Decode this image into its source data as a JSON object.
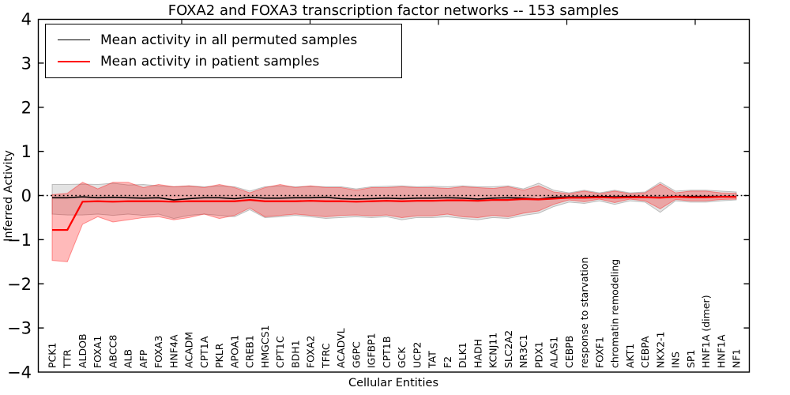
{
  "chart": {
    "title": "FOXA2 and FOXA3 transcription factor networks -- 153 samples",
    "xlabel": "Cellular Entities",
    "ylabel": "Inferred Activity"
  },
  "legend": {
    "items": [
      {
        "label": "Mean activity in all permuted samples",
        "color": "#000000"
      },
      {
        "label": "Mean activity in patient samples",
        "color": "#ff0000"
      }
    ]
  },
  "chart_data": {
    "type": "line",
    "title": "FOXA2 and FOXA3 transcription factor networks -- 153 samples",
    "xlabel": "Cellular Entities",
    "ylabel": "Inferred Activity",
    "ylim": [
      -4,
      4
    ],
    "ytick_labels": [
      "−4",
      "−3",
      "−2",
      "−1",
      "0",
      "1",
      "2",
      "3",
      "4"
    ],
    "yticks": [
      -4,
      -3,
      -2,
      -1,
      0,
      1,
      2,
      3,
      4
    ],
    "grid": false,
    "legend_position": "upper left",
    "zero_line": {
      "y": 0,
      "style": "dotted",
      "color": "#000000"
    },
    "categories": [
      "PCK1",
      "TTR",
      "ALDOB",
      "FOXA1",
      "ABCC8",
      "ALB",
      "AFP",
      "FOXA3",
      "HNF4A",
      "ACADM",
      "CPT1A",
      "PKLR",
      "APOA1",
      "CREB1",
      "HMGCS1",
      "CPT1C",
      "BDH1",
      "FOXA2",
      "TFRC",
      "ACADVL",
      "G6PC",
      "IGFBP1",
      "CPT1B",
      "GCK",
      "UCP2",
      "TAT",
      "F2",
      "DLK1",
      "HADH",
      "KCNJ11",
      "SLC2A2",
      "NR3C1",
      "PDX1",
      "ALAS1",
      "CEBPB",
      "response to starvation",
      "FOXF1",
      "chromatin remodeling",
      "AKT1",
      "CEBPA",
      "NKX2-1",
      "INS",
      "SP1",
      "HNF1A (dimer)",
      "HNF1A",
      "NF1"
    ],
    "series": [
      {
        "name": "Mean activity in all permuted samples",
        "color": "#000000",
        "values": [
          -0.05,
          -0.05,
          -0.03,
          -0.05,
          -0.04,
          -0.05,
          -0.06,
          -0.05,
          -0.1,
          -0.07,
          -0.05,
          -0.05,
          -0.07,
          -0.04,
          -0.06,
          -0.06,
          -0.05,
          -0.05,
          -0.04,
          -0.07,
          -0.08,
          -0.07,
          -0.06,
          -0.07,
          -0.06,
          -0.06,
          -0.05,
          -0.06,
          -0.08,
          -0.06,
          -0.05,
          -0.06,
          -0.08,
          -0.04,
          -0.03,
          -0.03,
          -0.02,
          -0.03,
          -0.02,
          -0.03,
          -0.04,
          -0.02,
          -0.02,
          -0.02,
          -0.02,
          -0.02
        ]
      },
      {
        "name": "Mean activity in patient samples",
        "color": "#ff0000",
        "values": [
          -0.78,
          -0.78,
          -0.14,
          -0.13,
          -0.14,
          -0.13,
          -0.13,
          -0.13,
          -0.14,
          -0.13,
          -0.13,
          -0.13,
          -0.13,
          -0.1,
          -0.13,
          -0.13,
          -0.13,
          -0.12,
          -0.13,
          -0.13,
          -0.14,
          -0.13,
          -0.12,
          -0.13,
          -0.12,
          -0.12,
          -0.11,
          -0.11,
          -0.12,
          -0.1,
          -0.1,
          -0.08,
          -0.09,
          -0.07,
          -0.05,
          -0.05,
          -0.04,
          -0.05,
          -0.04,
          -0.04,
          -0.05,
          -0.03,
          -0.04,
          -0.04,
          -0.03,
          -0.03
        ]
      }
    ],
    "bands": [
      {
        "name": "permuted-std-band",
        "fill": "rgba(0,0,0,0.11)",
        "edge": "rgba(0,0,0,0.22)",
        "upper": [
          0.25,
          0.25,
          0.26,
          0.25,
          0.28,
          0.24,
          0.25,
          0.22,
          0.2,
          0.22,
          0.2,
          0.22,
          0.2,
          0.1,
          0.2,
          0.22,
          0.2,
          0.21,
          0.2,
          0.2,
          0.15,
          0.2,
          0.21,
          0.22,
          0.2,
          0.21,
          0.2,
          0.22,
          0.2,
          0.2,
          0.22,
          0.15,
          0.28,
          0.12,
          0.06,
          0.12,
          0.06,
          0.12,
          0.06,
          0.08,
          0.3,
          0.1,
          0.12,
          0.12,
          0.1,
          0.08
        ],
        "lower": [
          -0.42,
          -0.44,
          -0.44,
          -0.42,
          -0.45,
          -0.42,
          -0.45,
          -0.42,
          -0.52,
          -0.45,
          -0.42,
          -0.45,
          -0.48,
          -0.32,
          -0.5,
          -0.48,
          -0.45,
          -0.48,
          -0.52,
          -0.5,
          -0.48,
          -0.5,
          -0.48,
          -0.55,
          -0.5,
          -0.5,
          -0.48,
          -0.52,
          -0.55,
          -0.5,
          -0.52,
          -0.45,
          -0.4,
          -0.25,
          -0.15,
          -0.18,
          -0.12,
          -0.2,
          -0.12,
          -0.15,
          -0.38,
          -0.12,
          -0.15,
          -0.15,
          -0.12,
          -0.1
        ]
      },
      {
        "name": "patient-std-band",
        "fill": "rgba(255,0,0,0.27)",
        "edge": "rgba(255,0,0,0.38)",
        "upper": [
          0.02,
          0.05,
          0.3,
          0.15,
          0.3,
          0.3,
          0.18,
          0.25,
          0.2,
          0.22,
          0.18,
          0.25,
          0.18,
          0.06,
          0.18,
          0.25,
          0.18,
          0.22,
          0.18,
          0.18,
          0.12,
          0.18,
          0.18,
          0.2,
          0.18,
          0.18,
          0.16,
          0.2,
          0.18,
          0.16,
          0.2,
          0.12,
          0.22,
          0.08,
          0.04,
          0.1,
          0.04,
          0.1,
          0.04,
          0.06,
          0.26,
          0.06,
          0.1,
          0.1,
          0.06,
          0.05
        ],
        "lower": [
          -1.47,
          -1.5,
          -0.65,
          -0.48,
          -0.6,
          -0.55,
          -0.5,
          -0.48,
          -0.55,
          -0.5,
          -0.42,
          -0.52,
          -0.45,
          -0.28,
          -0.48,
          -0.45,
          -0.42,
          -0.45,
          -0.48,
          -0.45,
          -0.44,
          -0.46,
          -0.44,
          -0.5,
          -0.46,
          -0.46,
          -0.42,
          -0.48,
          -0.5,
          -0.45,
          -0.48,
          -0.4,
          -0.35,
          -0.2,
          -0.1,
          -0.14,
          -0.08,
          -0.16,
          -0.08,
          -0.12,
          -0.3,
          -0.09,
          -0.12,
          -0.12,
          -0.09,
          -0.08
        ]
      }
    ]
  }
}
